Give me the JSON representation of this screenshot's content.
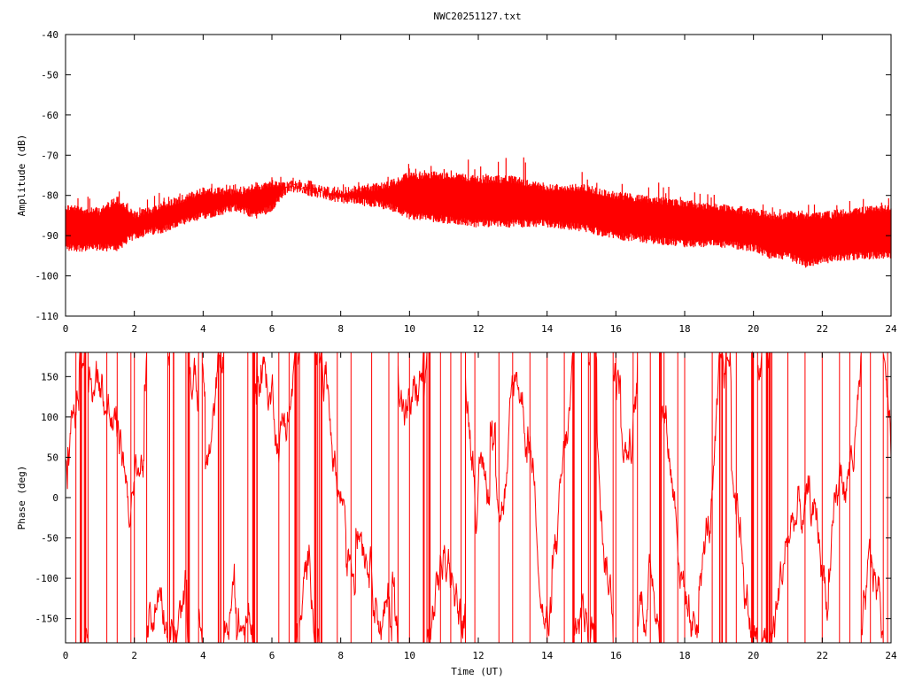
{
  "title": "NWC20251127.txt",
  "chart_data": [
    {
      "type": "line",
      "id": "amplitude",
      "title": "NWC20251127.txt",
      "xlabel": "",
      "ylabel": "Amplitude (dB)",
      "xlim": [
        0,
        24
      ],
      "ylim": [
        -110,
        -40
      ],
      "xticks": [
        "0",
        "2",
        "4",
        "6",
        "8",
        "10",
        "12",
        "14",
        "16",
        "18",
        "20",
        "22",
        "24"
      ],
      "yticks": [
        "-40",
        "-50",
        "-60",
        "-70",
        "-80",
        "-90",
        "-100",
        "-110"
      ],
      "color": "#ff0000",
      "grid": false,
      "series": [
        {
          "envelope_x": [
            0,
            1,
            1.5,
            2,
            3,
            4,
            5,
            5.5,
            6,
            6.5,
            7,
            8,
            9,
            9.5,
            10,
            11,
            12,
            13,
            14,
            15,
            16,
            17,
            18,
            19,
            20,
            20.5,
            21,
            21.5,
            22,
            23,
            24
          ],
          "upper": [
            -82,
            -83,
            -80,
            -84,
            -81,
            -78,
            -78,
            -77,
            -76,
            -76,
            -77,
            -78,
            -77,
            -76,
            -74,
            -74,
            -75,
            -75,
            -77,
            -77,
            -79,
            -80,
            -81,
            -82,
            -83,
            -84,
            -84,
            -84,
            -84,
            -83,
            -82
          ],
          "lower": [
            -94,
            -94,
            -94,
            -91,
            -89,
            -86,
            -84,
            -86,
            -84,
            -79,
            -80,
            -82,
            -83,
            -84,
            -86,
            -87,
            -88,
            -88,
            -88,
            -89,
            -91,
            -92,
            -93,
            -93,
            -94,
            -96,
            -96,
            -98,
            -97,
            -96,
            -96
          ],
          "spike_max": [
            -78,
            -74,
            -74,
            -80,
            -79,
            -77,
            -77,
            -76,
            -75,
            -75,
            -76,
            -77,
            -76,
            -75,
            -72,
            -71,
            -71,
            -70,
            -71,
            -73,
            -74,
            -76,
            -78,
            -79,
            -80,
            -82,
            -82,
            -82,
            -82,
            -80,
            -80
          ]
        }
      ]
    },
    {
      "type": "line",
      "id": "phase",
      "xlabel": "Time (UT)",
      "ylabel": "Phase (deg)",
      "xlim": [
        0,
        24
      ],
      "ylim": [
        -180,
        180
      ],
      "xticks": [
        "0",
        "2",
        "4",
        "6",
        "8",
        "10",
        "12",
        "14",
        "16",
        "18",
        "20",
        "22",
        "24"
      ],
      "yticks": [
        "150",
        "100",
        "50",
        "0",
        "-50",
        "-100",
        "-150"
      ],
      "color": "#ff0000",
      "grid": false,
      "series": [
        {
          "note": "phase wraps between -180 and 180 deg throughout the day",
          "wrap_times": [
            0.3,
            1.2,
            1.5,
            1.9,
            2.0,
            3.5,
            3.6,
            5.3,
            5.5,
            6.2,
            6.5,
            6.8,
            7.9,
            8.3,
            8.9,
            9.4,
            10.0,
            10.6,
            10.9,
            11.2,
            11.5,
            11.9,
            12.6,
            13.0,
            13.5,
            14.0,
            14.5,
            15.0,
            15.4,
            16.0,
            16.5,
            17.0,
            17.4,
            17.8,
            18.0,
            18.8,
            19.2,
            19.5,
            20.0,
            20.4,
            21.0,
            21.5,
            22.0,
            22.5,
            22.8,
            23.4,
            23.9
          ]
        }
      ]
    }
  ]
}
